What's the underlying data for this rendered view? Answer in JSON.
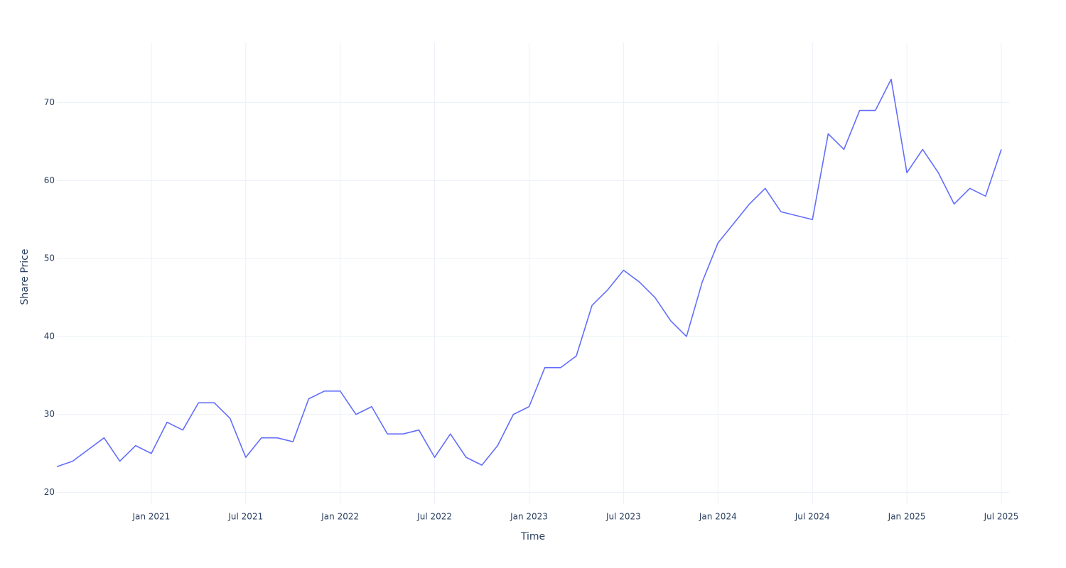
{
  "chart_data": {
    "type": "line",
    "x_label": "Time",
    "y_label": "Share Price",
    "x": [
      "2020-07",
      "2020-08",
      "2020-09",
      "2020-10",
      "2020-11",
      "2020-12",
      "2021-01",
      "2021-02",
      "2021-03",
      "2021-04",
      "2021-05",
      "2021-06",
      "2021-07",
      "2021-08",
      "2021-09",
      "2021-10",
      "2021-11",
      "2021-12",
      "2022-01",
      "2022-02",
      "2022-03",
      "2022-04",
      "2022-05",
      "2022-06",
      "2022-07",
      "2022-08",
      "2022-09",
      "2022-10",
      "2022-11",
      "2022-12",
      "2023-01",
      "2023-02",
      "2023-03",
      "2023-04",
      "2023-05",
      "2023-06",
      "2023-07",
      "2023-08",
      "2023-09",
      "2023-10",
      "2023-11",
      "2023-12",
      "2024-01",
      "2024-02",
      "2024-03",
      "2024-04",
      "2024-05",
      "2024-06",
      "2024-07",
      "2024-08",
      "2024-09",
      "2024-10",
      "2024-11",
      "2024-12",
      "2025-01",
      "2025-02",
      "2025-03",
      "2025-04",
      "2025-05",
      "2025-06",
      "2025-07"
    ],
    "series": [
      {
        "color": "#636efa",
        "values": [
          23.3,
          24,
          25.5,
          27,
          24,
          26,
          25,
          29,
          28,
          31.5,
          31.5,
          29.5,
          24.5,
          27,
          27,
          26.5,
          32,
          33,
          33,
          30,
          31,
          27.5,
          27.5,
          28,
          24.5,
          27.5,
          24.5,
          23.5,
          26,
          30,
          31,
          36,
          36,
          37.5,
          44,
          46,
          48.5,
          47,
          45,
          42,
          40,
          47,
          52,
          54.5,
          57,
          59,
          56,
          55.5,
          55,
          66,
          64,
          69,
          69,
          73,
          61,
          64,
          61,
          57,
          59,
          58,
          64
        ]
      }
    ],
    "xlim": [
      "2020-07",
      "2025-07"
    ],
    "xticks": [
      {
        "value": "2021-01",
        "label": "Jan 2021"
      },
      {
        "value": "2021-07",
        "label": "Jul 2021"
      },
      {
        "value": "2022-01",
        "label": "Jan 2022"
      },
      {
        "value": "2022-07",
        "label": "Jul 2022"
      },
      {
        "value": "2023-01",
        "label": "Jan 2023"
      },
      {
        "value": "2023-07",
        "label": "Jul 2023"
      },
      {
        "value": "2024-01",
        "label": "Jan 2024"
      },
      {
        "value": "2024-07",
        "label": "Jul 2024"
      },
      {
        "value": "2025-01",
        "label": "Jan 2025"
      },
      {
        "value": "2025-07",
        "label": "Jul 2025"
      }
    ],
    "ylim": [
      18.5,
      77.7
    ],
    "yticks": [
      20,
      30,
      40,
      50,
      60,
      70
    ],
    "grid": true
  }
}
